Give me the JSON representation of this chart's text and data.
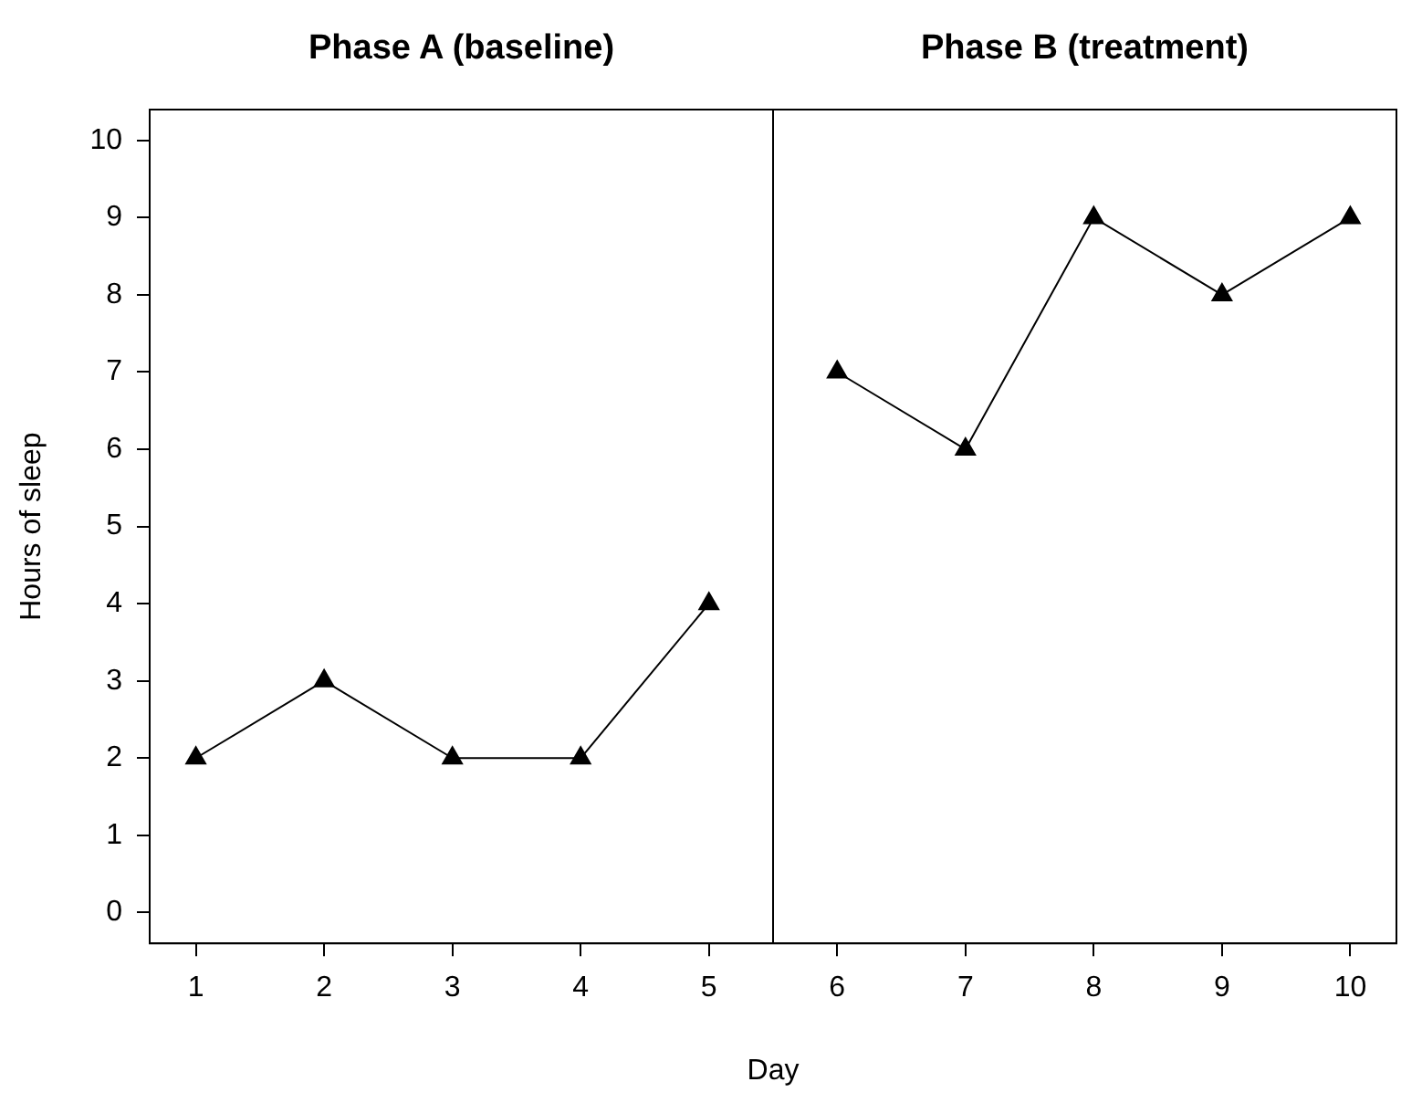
{
  "chart_data": {
    "type": "line",
    "xlabel": "Day",
    "ylabel": "Hours of sleep",
    "annotations": [
      "Phase A (baseline)",
      "Phase B (treatment)"
    ],
    "xlim": [
      0.64,
      10.36
    ],
    "xticks": [
      1,
      2,
      3,
      4,
      5,
      6,
      7,
      8,
      9,
      10
    ],
    "ylim": [
      -0.4,
      10.4
    ],
    "yticks": [
      0,
      1,
      2,
      3,
      4,
      5,
      6,
      7,
      8,
      9,
      10
    ],
    "series": [
      {
        "color": "#000000",
        "x": [
          1,
          2,
          3,
          4,
          5
        ],
        "values": [
          2,
          3,
          2,
          2,
          4
        ]
      },
      {
        "color": "#000000",
        "x": [
          6,
          7,
          8,
          9,
          10
        ],
        "values": [
          7,
          6,
          9,
          8,
          9
        ]
      }
    ],
    "ref_lines": [
      {
        "axis": "x",
        "value": 5.5,
        "color": "#000000"
      }
    ],
    "grid": false,
    "legend": false,
    "marker": "triangle",
    "line_style": "solid"
  }
}
